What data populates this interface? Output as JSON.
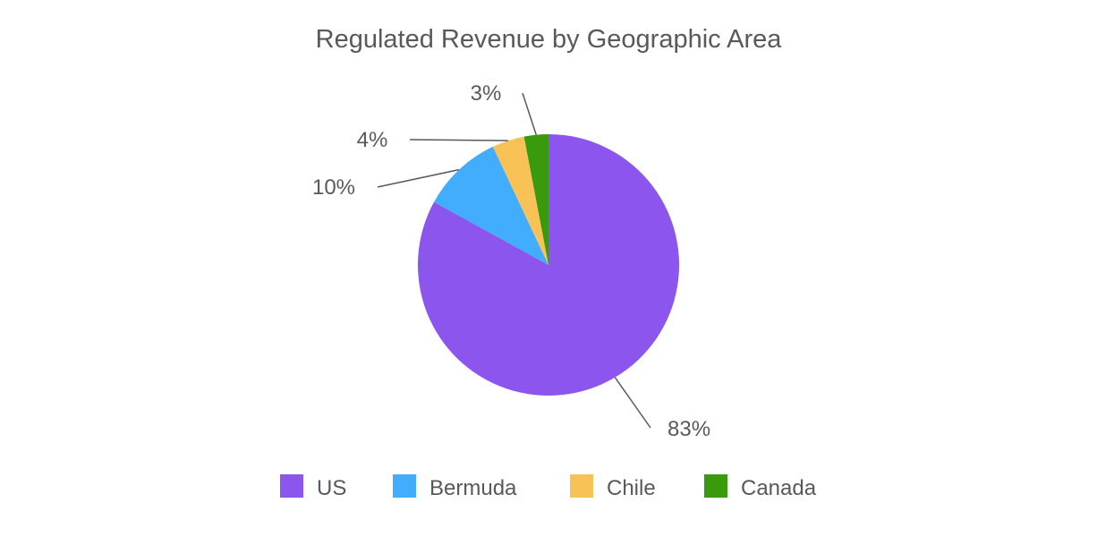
{
  "chart_data": {
    "type": "pie",
    "title": "Regulated Revenue by Geographic Area",
    "categories": [
      "US",
      "Bermuda",
      "Chile",
      "Canada"
    ],
    "values": [
      83,
      10,
      4,
      3
    ],
    "labels": [
      "83%",
      "10%",
      "4%",
      "3%"
    ],
    "colors": [
      "#8b55ee",
      "#43adfd",
      "#f8c256",
      "#3a9a0e"
    ],
    "legend_position": "bottom",
    "start_angle": "12 o'clock",
    "direction": "clockwise"
  }
}
